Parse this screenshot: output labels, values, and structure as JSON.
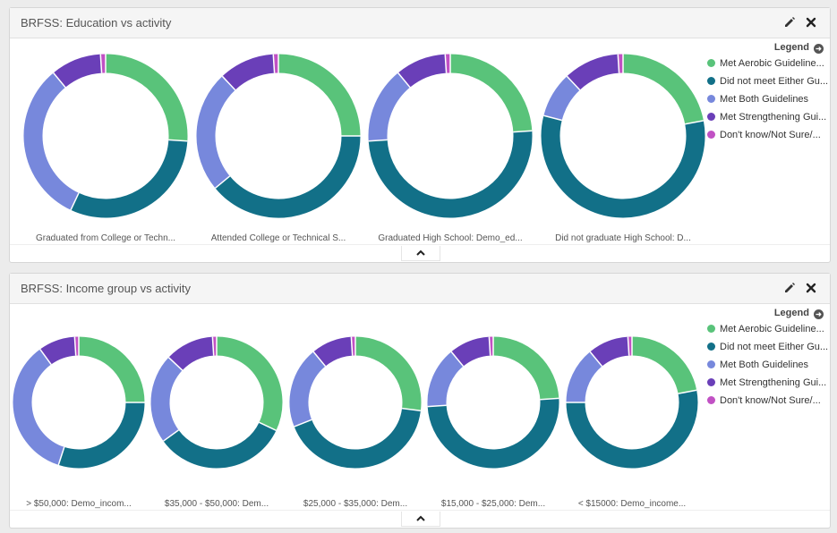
{
  "colors": {
    "Met Aerobic Guidelines": "#59c37a",
    "Did not meet Either Guidelines": "#127088",
    "Met Both Guidelines": "#7788dc",
    "Met Strengthening Guidelines": "#6a3fb8",
    "Don't know/Not Sure/Refused": "#c151c4"
  },
  "panels": [
    {
      "title": "BRFSS: Education vs activity",
      "legend_title": "Legend",
      "legend": [
        {
          "label": "Met Aerobic Guideline...",
          "key": "Met Aerobic Guidelines"
        },
        {
          "label": "Did not meet Either Gu...",
          "key": "Did not meet Either Guidelines"
        },
        {
          "label": "Met Both Guidelines",
          "key": "Met Both Guidelines"
        },
        {
          "label": "Met Strengthening Gui...",
          "key": "Met Strengthening Guidelines"
        },
        {
          "label": "Don't know/Not Sure/...",
          "key": "Don't know/Not Sure/Refused"
        }
      ]
    },
    {
      "title": "BRFSS: Income group vs activity",
      "legend_title": "Legend",
      "legend": [
        {
          "label": "Met Aerobic Guideline...",
          "key": "Met Aerobic Guidelines"
        },
        {
          "label": "Did not meet Either Gu...",
          "key": "Did not meet Either Guidelines"
        },
        {
          "label": "Met Both Guidelines",
          "key": "Met Both Guidelines"
        },
        {
          "label": "Met Strengthening Gui...",
          "key": "Met Strengthening Guidelines"
        },
        {
          "label": "Don't know/Not Sure/...",
          "key": "Don't know/Not Sure/Refused"
        }
      ]
    }
  ],
  "chart_data": [
    {
      "type": "pie",
      "title": "BRFSS: Education vs activity",
      "categories": [
        "Met Aerobic Guidelines",
        "Did not meet Either Guidelines",
        "Met Both Guidelines",
        "Met Strengthening Guidelines",
        "Don't know/Not Sure/Refused"
      ],
      "series": [
        {
          "name": "Graduated from College or Techn...",
          "values": [
            26,
            31,
            32,
            10,
            1
          ]
        },
        {
          "name": "Attended College or Technical S...",
          "values": [
            25,
            39,
            24,
            11,
            1
          ]
        },
        {
          "name": "Graduated High School: Demo_ed...",
          "values": [
            24,
            50,
            15,
            10,
            1
          ]
        },
        {
          "name": "Did not graduate High School: D...",
          "values": [
            22,
            57,
            9,
            11,
            1
          ]
        }
      ],
      "legend_position": "right"
    },
    {
      "type": "pie",
      "title": "BRFSS: Income group vs activity",
      "categories": [
        "Met Aerobic Guidelines",
        "Did not meet Either Guidelines",
        "Met Both Guidelines",
        "Met Strengthening Guidelines",
        "Don't know/Not Sure/Refused"
      ],
      "series": [
        {
          "name": "> $50,000: Demo_incom...",
          "values": [
            25,
            30,
            35,
            9,
            1
          ]
        },
        {
          "name": "$35,000 - $50,000: Dem...",
          "values": [
            32,
            33,
            22,
            12,
            1
          ]
        },
        {
          "name": "$25,000 - $35,000: Dem...",
          "values": [
            27,
            42,
            20,
            10,
            1
          ]
        },
        {
          "name": "$15,000 - $25,000: Dem...",
          "values": [
            24,
            50,
            15,
            10,
            1
          ]
        },
        {
          "name": "< $15000: Demo_income...",
          "values": [
            22,
            53,
            14,
            10,
            1
          ]
        }
      ],
      "legend_position": "right"
    }
  ]
}
